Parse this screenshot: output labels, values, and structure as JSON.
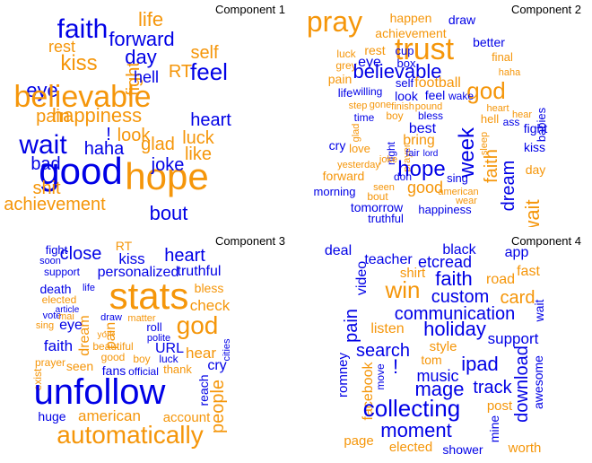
{
  "colors": {
    "blue": "#0000e6",
    "orange": "#f5960a",
    "black": "#000000"
  },
  "panels": [
    {
      "title": "Component 1",
      "words": [
        {
          "t": "faith",
          "c": "blue"
        },
        {
          "t": "life",
          "c": "orange"
        },
        {
          "t": "forward",
          "c": "blue"
        },
        {
          "t": "rest",
          "c": "orange"
        },
        {
          "t": "fight",
          "c": "orange"
        },
        {
          "t": "day",
          "c": "blue"
        },
        {
          "t": "self",
          "c": "orange"
        },
        {
          "t": "kiss",
          "c": "orange"
        },
        {
          "t": "hell",
          "c": "blue"
        },
        {
          "t": "RT",
          "c": "orange"
        },
        {
          "t": "feel",
          "c": "blue"
        },
        {
          "t": "eye",
          "c": "blue"
        },
        {
          "t": "believable",
          "c": "orange"
        },
        {
          "t": "pain",
          "c": "orange"
        },
        {
          "t": "happiness",
          "c": "orange"
        },
        {
          "t": "heart",
          "c": "blue"
        },
        {
          "t": "!",
          "c": "blue"
        },
        {
          "t": "look",
          "c": "orange"
        },
        {
          "t": "wait",
          "c": "blue"
        },
        {
          "t": "haha",
          "c": "blue"
        },
        {
          "t": "glad",
          "c": "orange"
        },
        {
          "t": "luck",
          "c": "orange"
        },
        {
          "t": "like",
          "c": "orange"
        },
        {
          "t": "bad",
          "c": "blue"
        },
        {
          "t": "good",
          "c": "blue"
        },
        {
          "t": "hope",
          "c": "orange"
        },
        {
          "t": "shit",
          "c": "orange"
        },
        {
          "t": "joke",
          "c": "blue"
        },
        {
          "t": "achievement",
          "c": "orange"
        },
        {
          "t": "bout",
          "c": "blue"
        }
      ]
    },
    {
      "title": "Component 2",
      "words": [
        {
          "t": "pray",
          "c": "orange"
        },
        {
          "t": "happen",
          "c": "orange"
        },
        {
          "t": "draw",
          "c": "blue"
        },
        {
          "t": "achievement",
          "c": "orange"
        },
        {
          "t": "trust",
          "c": "orange"
        },
        {
          "t": "better",
          "c": "blue"
        },
        {
          "t": "luck",
          "c": "orange"
        },
        {
          "t": "rest",
          "c": "orange"
        },
        {
          "t": "cup",
          "c": "blue"
        },
        {
          "t": "final",
          "c": "orange"
        },
        {
          "t": "grey",
          "c": "orange"
        },
        {
          "t": "eye",
          "c": "blue"
        },
        {
          "t": "box",
          "c": "blue"
        },
        {
          "t": "believable",
          "c": "blue"
        },
        {
          "t": "haha",
          "c": "orange"
        },
        {
          "t": "pain",
          "c": "orange"
        },
        {
          "t": "self",
          "c": "blue"
        },
        {
          "t": "football",
          "c": "orange"
        },
        {
          "t": "god",
          "c": "orange"
        },
        {
          "t": "life",
          "c": "blue"
        },
        {
          "t": "willing",
          "c": "blue"
        },
        {
          "t": "look",
          "c": "blue"
        },
        {
          "t": "feel",
          "c": "blue"
        },
        {
          "t": "wake",
          "c": "blue"
        },
        {
          "t": "babies",
          "c": "blue"
        },
        {
          "t": "step",
          "c": "orange"
        },
        {
          "t": "gone",
          "c": "orange"
        },
        {
          "t": "finish",
          "c": "orange"
        },
        {
          "t": "pound",
          "c": "orange"
        },
        {
          "t": "heart",
          "c": "orange"
        },
        {
          "t": "week",
          "c": "blue"
        },
        {
          "t": "glad",
          "c": "orange"
        },
        {
          "t": "time",
          "c": "blue"
        },
        {
          "t": "boy",
          "c": "orange"
        },
        {
          "t": "bless",
          "c": "blue"
        },
        {
          "t": "hell",
          "c": "orange"
        },
        {
          "t": "ass",
          "c": "blue"
        },
        {
          "t": "hear",
          "c": "orange"
        },
        {
          "t": "night",
          "c": "blue"
        },
        {
          "t": "prayer",
          "c": "orange"
        },
        {
          "t": "best",
          "c": "blue"
        },
        {
          "t": "sleep",
          "c": "orange"
        },
        {
          "t": "fight",
          "c": "blue"
        },
        {
          "t": "cry",
          "c": "blue"
        },
        {
          "t": "love",
          "c": "orange"
        },
        {
          "t": "bring",
          "c": "orange"
        },
        {
          "t": "faith",
          "c": "orange"
        },
        {
          "t": "kiss",
          "c": "blue"
        },
        {
          "t": "joke",
          "c": "orange"
        },
        {
          "t": "fair",
          "c": "blue"
        },
        {
          "t": "lord",
          "c": "blue"
        },
        {
          "t": "yesterday",
          "c": "orange"
        },
        {
          "t": "hope",
          "c": "blue"
        },
        {
          "t": "day",
          "c": "orange"
        },
        {
          "t": "dream",
          "c": "blue"
        },
        {
          "t": "forward",
          "c": "orange"
        },
        {
          "t": "don",
          "c": "blue"
        },
        {
          "t": "sing",
          "c": "blue"
        },
        {
          "t": "seen",
          "c": "orange"
        },
        {
          "t": "good",
          "c": "orange"
        },
        {
          "t": "american",
          "c": "orange"
        },
        {
          "t": "wait",
          "c": "orange"
        },
        {
          "t": "morning",
          "c": "blue"
        },
        {
          "t": "bout",
          "c": "orange"
        },
        {
          "t": "wear",
          "c": "orange"
        },
        {
          "t": "tomorrow",
          "c": "blue"
        },
        {
          "t": "happiness",
          "c": "blue"
        },
        {
          "t": "truthful",
          "c": "blue"
        }
      ]
    },
    {
      "title": "Component 3",
      "words": [
        {
          "t": "fight",
          "c": "blue"
        },
        {
          "t": "RT",
          "c": "orange"
        },
        {
          "t": "close",
          "c": "blue"
        },
        {
          "t": "heart",
          "c": "blue"
        },
        {
          "t": "soon",
          "c": "blue"
        },
        {
          "t": "kiss",
          "c": "blue"
        },
        {
          "t": "support",
          "c": "blue"
        },
        {
          "t": "personalized",
          "c": "blue"
        },
        {
          "t": "truthful",
          "c": "blue"
        },
        {
          "t": "stats",
          "c": "orange"
        },
        {
          "t": "bless",
          "c": "orange"
        },
        {
          "t": "death",
          "c": "blue"
        },
        {
          "t": "life",
          "c": "blue"
        },
        {
          "t": "elected",
          "c": "orange"
        },
        {
          "t": "check",
          "c": "orange"
        },
        {
          "t": "article",
          "c": "blue"
        },
        {
          "t": "vote",
          "c": "blue"
        },
        {
          "t": "mai",
          "c": "orange"
        },
        {
          "t": "draw",
          "c": "blue"
        },
        {
          "t": "matter",
          "c": "orange"
        },
        {
          "t": "god",
          "c": "orange"
        },
        {
          "t": "sing",
          "c": "orange"
        },
        {
          "t": "eye",
          "c": "blue"
        },
        {
          "t": "dream",
          "c": "orange"
        },
        {
          "t": "pain",
          "c": "orange"
        },
        {
          "t": "roll",
          "c": "blue"
        },
        {
          "t": "york",
          "c": "orange"
        },
        {
          "t": "polite",
          "c": "blue"
        },
        {
          "t": "faith",
          "c": "blue"
        },
        {
          "t": "beautiful",
          "c": "orange"
        },
        {
          "t": "URL",
          "c": "blue"
        },
        {
          "t": "hear",
          "c": "orange"
        },
        {
          "t": "cities",
          "c": "blue"
        },
        {
          "t": "good",
          "c": "orange"
        },
        {
          "t": "boy",
          "c": "orange"
        },
        {
          "t": "luck",
          "c": "blue"
        },
        {
          "t": "prayer",
          "c": "orange"
        },
        {
          "t": "seen",
          "c": "orange"
        },
        {
          "t": "cry",
          "c": "blue"
        },
        {
          "t": "fans",
          "c": "blue"
        },
        {
          "t": "official",
          "c": "blue"
        },
        {
          "t": "thank",
          "c": "orange"
        },
        {
          "t": "exist",
          "c": "orange"
        },
        {
          "t": "reach",
          "c": "blue"
        },
        {
          "t": "unfollow",
          "c": "blue"
        },
        {
          "t": "people",
          "c": "orange"
        },
        {
          "t": "huge",
          "c": "blue"
        },
        {
          "t": "american",
          "c": "orange"
        },
        {
          "t": "account",
          "c": "orange"
        },
        {
          "t": "automatically",
          "c": "orange"
        }
      ]
    },
    {
      "title": "Component 4",
      "words": [
        {
          "t": "deal",
          "c": "blue"
        },
        {
          "t": "black",
          "c": "blue"
        },
        {
          "t": "app",
          "c": "blue"
        },
        {
          "t": "teacher",
          "c": "blue"
        },
        {
          "t": "etcread",
          "c": "blue"
        },
        {
          "t": "video",
          "c": "blue"
        },
        {
          "t": "shirt",
          "c": "orange"
        },
        {
          "t": "fast",
          "c": "orange"
        },
        {
          "t": "faith",
          "c": "blue"
        },
        {
          "t": "road",
          "c": "orange"
        },
        {
          "t": "win",
          "c": "orange"
        },
        {
          "t": "custom",
          "c": "blue"
        },
        {
          "t": "card",
          "c": "orange"
        },
        {
          "t": "communication",
          "c": "blue"
        },
        {
          "t": "pain",
          "c": "blue"
        },
        {
          "t": "wait",
          "c": "blue"
        },
        {
          "t": "holiday",
          "c": "blue"
        },
        {
          "t": "listen",
          "c": "orange"
        },
        {
          "t": "support",
          "c": "blue"
        },
        {
          "t": "style",
          "c": "orange"
        },
        {
          "t": "search",
          "c": "blue"
        },
        {
          "t": "tom",
          "c": "orange"
        },
        {
          "t": "!",
          "c": "blue"
        },
        {
          "t": "ipad",
          "c": "blue"
        },
        {
          "t": "facebook",
          "c": "orange"
        },
        {
          "t": "romney",
          "c": "blue"
        },
        {
          "t": "move",
          "c": "blue"
        },
        {
          "t": "music",
          "c": "blue"
        },
        {
          "t": "download",
          "c": "blue"
        },
        {
          "t": "awesome",
          "c": "blue"
        },
        {
          "t": "mage",
          "c": "blue"
        },
        {
          "t": "track",
          "c": "blue"
        },
        {
          "t": "collecting",
          "c": "blue"
        },
        {
          "t": "post",
          "c": "orange"
        },
        {
          "t": "mine",
          "c": "blue"
        },
        {
          "t": "moment",
          "c": "blue"
        },
        {
          "t": "page",
          "c": "orange"
        },
        {
          "t": "elected",
          "c": "orange"
        },
        {
          "t": "shower",
          "c": "blue"
        },
        {
          "t": "worth",
          "c": "orange"
        }
      ]
    }
  ]
}
